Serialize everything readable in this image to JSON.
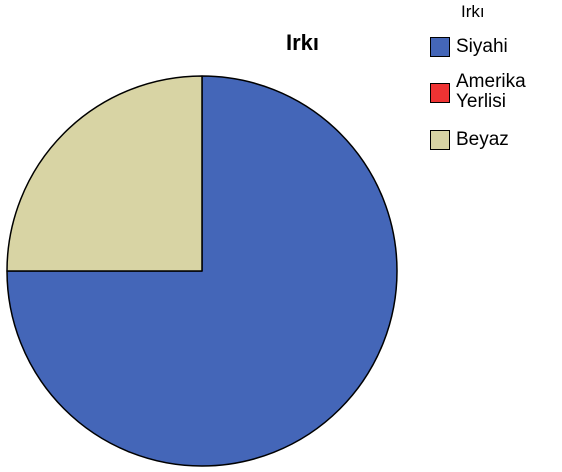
{
  "chart_data": {
    "type": "pie",
    "title": "Irkı",
    "legend_title": "Irkı",
    "legend_position": "top-right",
    "categories": [
      "Siyahi",
      "Amerika Yerlisi",
      "Beyaz"
    ],
    "values": [
      75,
      0,
      25
    ],
    "colors": [
      "#4466B8",
      "#EE3333",
      "#D8D4A4"
    ]
  },
  "legend": {
    "title": "Irkı",
    "items": [
      {
        "label": "Siyahi"
      },
      {
        "label": "Amerika\nYerlisi"
      },
      {
        "label": "Beyaz"
      }
    ]
  }
}
